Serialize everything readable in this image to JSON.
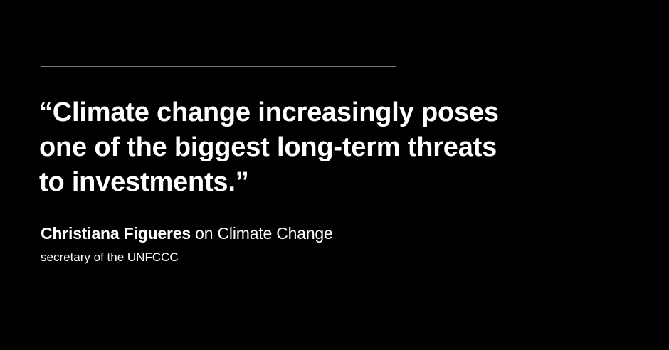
{
  "quote": {
    "lines": [
      "“Climate change increasingly poses",
      "one of the biggest long-term threats",
      "to investments.”"
    ]
  },
  "attribution": {
    "name": "Christiana Figueres",
    "topic": " on Climate Change",
    "role": "secretary of the UNFCCC"
  },
  "colors": {
    "background": "#000000",
    "text": "#ffffff",
    "rule": "#7a7a7a"
  }
}
